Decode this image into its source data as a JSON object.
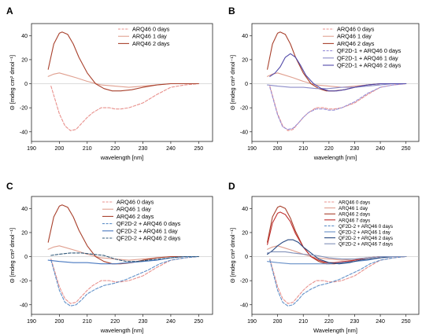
{
  "figure": {
    "panels": [
      "A",
      "B",
      "C",
      "D"
    ]
  },
  "chart_data": [
    {
      "panel": "A",
      "type": "line",
      "xlabel": "wavelength [nm]",
      "ylabel": "Θ [mdeg cm² dmol⁻¹]",
      "xlim": [
        190,
        255
      ],
      "ylim": [
        -48,
        50
      ],
      "xticks": [
        190,
        200,
        210,
        220,
        230,
        240,
        250
      ],
      "yticks": [
        -40,
        -20,
        0,
        20,
        40
      ],
      "legend_position": "top-right",
      "series": [
        {
          "name": "ARQ46 0 days",
          "color": "#e8908c",
          "dash": "dashed",
          "x": [
            197,
            200,
            202,
            204,
            206,
            208,
            210,
            212,
            215,
            218,
            220,
            222,
            225,
            230,
            235,
            240,
            245,
            250
          ],
          "y": [
            -2,
            -25,
            -35,
            -39,
            -38,
            -33,
            -28,
            -24,
            -20,
            -20,
            -21,
            -21,
            -20,
            -16,
            -9,
            -3,
            -1,
            0
          ]
        },
        {
          "name": "ARQ46 1 day",
          "color": "#e0a090",
          "dash": "solid",
          "x": [
            196,
            198,
            200,
            203,
            206,
            210,
            215,
            220,
            225,
            230,
            235,
            240,
            245,
            250
          ],
          "y": [
            6,
            8,
            9,
            7,
            5,
            2,
            -1,
            -2,
            -3,
            -2,
            -1,
            0,
            0,
            0
          ]
        },
        {
          "name": "ARQ46 2 days",
          "color": "#a8402c",
          "dash": "solid",
          "x": [
            196,
            198,
            200,
            201,
            203,
            205,
            207,
            210,
            213,
            216,
            219,
            222,
            226,
            230,
            235,
            240,
            245,
            250
          ],
          "y": [
            12,
            33,
            42,
            43,
            41,
            33,
            22,
            9,
            0,
            -4,
            -6,
            -6,
            -5,
            -3,
            -1,
            0,
            0,
            0
          ]
        }
      ]
    },
    {
      "panel": "B",
      "type": "line",
      "xlabel": "wavelength [nm]",
      "ylabel": "Θ [mdeg cm² dmol⁻¹]",
      "xlim": [
        190,
        255
      ],
      "ylim": [
        -48,
        50
      ],
      "xticks": [
        190,
        200,
        210,
        220,
        230,
        240,
        250
      ],
      "yticks": [
        -40,
        -20,
        0,
        20,
        40
      ],
      "legend_position": "top-right",
      "series": [
        {
          "name": "ARQ46 0 days",
          "color": "#e8908c",
          "dash": "dashed",
          "x": [
            197,
            200,
            202,
            204,
            206,
            208,
            210,
            212,
            215,
            218,
            220,
            222,
            225,
            230,
            235,
            240,
            245,
            250
          ],
          "y": [
            -2,
            -25,
            -35,
            -39,
            -38,
            -33,
            -28,
            -24,
            -20,
            -20,
            -21,
            -21,
            -20,
            -16,
            -9,
            -3,
            -1,
            0
          ]
        },
        {
          "name": "ARQ46 1 day",
          "color": "#e0a090",
          "dash": "solid",
          "x": [
            196,
            198,
            200,
            203,
            206,
            210,
            215,
            220,
            225,
            230,
            235,
            240,
            245,
            250
          ],
          "y": [
            6,
            8,
            9,
            7,
            5,
            2,
            -1,
            -2,
            -3,
            -2,
            -1,
            0,
            0,
            0
          ]
        },
        {
          "name": "ARQ46 2 days",
          "color": "#a8402c",
          "dash": "solid",
          "x": [
            196,
            198,
            200,
            201,
            203,
            205,
            207,
            210,
            213,
            216,
            219,
            222,
            226,
            230,
            235,
            240,
            245,
            250
          ],
          "y": [
            12,
            33,
            42,
            43,
            41,
            33,
            22,
            9,
            0,
            -4,
            -6,
            -6,
            -5,
            -3,
            -1,
            0,
            0,
            0
          ]
        },
        {
          "name": "QF2D-1 + ARQ46 0 days",
          "color": "#9890d8",
          "dash": "dashed",
          "x": [
            197,
            200,
            202,
            204,
            206,
            208,
            210,
            212,
            215,
            218,
            220,
            222,
            225,
            230,
            235,
            240,
            245,
            250
          ],
          "y": [
            -3,
            -26,
            -36,
            -38,
            -37,
            -33,
            -28,
            -24,
            -21,
            -21,
            -22,
            -22,
            -20,
            -15,
            -8,
            -3,
            -1,
            0
          ]
        },
        {
          "name": "QF2D-1 + ARQ46 1 day",
          "color": "#8c8cc8",
          "dash": "solid",
          "x": [
            196,
            200,
            205,
            210,
            215,
            220,
            225,
            230,
            235,
            240,
            245,
            250
          ],
          "y": [
            -1,
            -2,
            -3,
            -3,
            -4,
            -4,
            -3,
            -3,
            -2,
            -1,
            0,
            0
          ]
        },
        {
          "name": "QF2D-1 + ARQ46 2 days",
          "color": "#5048a8",
          "dash": "solid",
          "x": [
            197,
            199,
            201,
            203,
            205,
            207,
            209,
            211,
            214,
            217,
            220,
            223,
            226,
            230,
            235,
            240,
            245,
            250
          ],
          "y": [
            6,
            9,
            14,
            22,
            25,
            22,
            15,
            7,
            0,
            -4,
            -6,
            -6,
            -5,
            -3,
            -1,
            0,
            0,
            0
          ]
        }
      ]
    },
    {
      "panel": "C",
      "type": "line",
      "xlabel": "wavelength [nm]",
      "ylabel": "Θ [mdeg cm² dmol⁻¹]",
      "xlim": [
        190,
        255
      ],
      "ylim": [
        -48,
        50
      ],
      "xticks": [
        190,
        200,
        210,
        220,
        230,
        240,
        250
      ],
      "yticks": [
        -40,
        -20,
        0,
        20,
        40
      ],
      "legend_position": "top-right",
      "series": [
        {
          "name": "ARQ46 0 days",
          "color": "#e8908c",
          "dash": "dashed",
          "x": [
            197,
            200,
            202,
            204,
            206,
            208,
            210,
            212,
            215,
            218,
            220,
            222,
            225,
            230,
            235,
            240,
            245,
            250
          ],
          "y": [
            -2,
            -25,
            -35,
            -39,
            -38,
            -33,
            -28,
            -24,
            -20,
            -20,
            -21,
            -21,
            -20,
            -16,
            -9,
            -3,
            -1,
            0
          ]
        },
        {
          "name": "ARQ46 1 day",
          "color": "#e0a090",
          "dash": "solid",
          "x": [
            196,
            198,
            200,
            203,
            206,
            210,
            215,
            220,
            225,
            230,
            235,
            240,
            245,
            250
          ],
          "y": [
            6,
            8,
            9,
            7,
            5,
            2,
            -1,
            -2,
            -3,
            -2,
            -1,
            0,
            0,
            0
          ]
        },
        {
          "name": "ARQ46 2 days",
          "color": "#a8402c",
          "dash": "solid",
          "x": [
            196,
            198,
            200,
            201,
            203,
            205,
            207,
            210,
            213,
            216,
            219,
            222,
            226,
            230,
            235,
            240,
            245,
            250
          ],
          "y": [
            12,
            33,
            42,
            43,
            41,
            33,
            22,
            9,
            0,
            -4,
            -6,
            -6,
            -5,
            -3,
            -1,
            0,
            0,
            0
          ]
        },
        {
          "name": "QF2D-2 + ARQ46 0 days",
          "color": "#6090c8",
          "dash": "dashed",
          "x": [
            197,
            200,
            202,
            204,
            206,
            208,
            210,
            213,
            216,
            220,
            224,
            228,
            232,
            236,
            240,
            245,
            250
          ],
          "y": [
            -3,
            -28,
            -38,
            -41,
            -40,
            -36,
            -31,
            -27,
            -24,
            -22,
            -19,
            -15,
            -11,
            -6,
            -3,
            -1,
            0
          ]
        },
        {
          "name": "QF2D-2 + ARQ46 1 day",
          "color": "#4878c0",
          "dash": "solid",
          "x": [
            196,
            200,
            205,
            210,
            215,
            220,
            225,
            230,
            235,
            240,
            245,
            250
          ],
          "y": [
            -3,
            -4,
            -5,
            -5,
            -6,
            -6,
            -5,
            -4,
            -3,
            -1,
            0,
            0
          ]
        },
        {
          "name": "QF2D-2 + ARQ46 2 days",
          "color": "#305878",
          "dash": "dashed",
          "x": [
            197,
            200,
            204,
            208,
            212,
            216,
            220,
            224,
            228,
            232,
            236,
            240,
            245,
            250
          ],
          "y": [
            1,
            2,
            3,
            3,
            2,
            1,
            -2,
            -4,
            -4,
            -3,
            -2,
            -1,
            0,
            0
          ]
        }
      ]
    },
    {
      "panel": "D",
      "type": "line",
      "xlabel": "Wavelength [nm]",
      "ylabel": "Θ [mdeg cm² dmol⁻¹]",
      "xlim": [
        190,
        255
      ],
      "ylim": [
        -48,
        50
      ],
      "xticks": [
        190,
        200,
        210,
        220,
        230,
        240,
        250
      ],
      "yticks": [
        -40,
        -20,
        0,
        20,
        40
      ],
      "legend_position": "top-right",
      "series": [
        {
          "name": "ARQ46 0 days",
          "color": "#e8908c",
          "dash": "dashed",
          "x": [
            197,
            200,
            202,
            204,
            206,
            208,
            210,
            212,
            215,
            218,
            220,
            222,
            225,
            230,
            235,
            240,
            245,
            250
          ],
          "y": [
            -2,
            -25,
            -35,
            -39,
            -38,
            -33,
            -28,
            -24,
            -20,
            -20,
            -21,
            -21,
            -20,
            -16,
            -9,
            -3,
            -1,
            0
          ]
        },
        {
          "name": "ARQ46 1 day",
          "color": "#e0a090",
          "dash": "solid",
          "x": [
            196,
            198,
            200,
            203,
            206,
            210,
            215,
            220,
            225,
            230,
            235,
            240,
            245,
            250
          ],
          "y": [
            6,
            8,
            9,
            7,
            5,
            2,
            -1,
            -2,
            -3,
            -2,
            -1,
            0,
            0,
            0
          ]
        },
        {
          "name": "ARQ46 2 days",
          "color": "#a8402c",
          "dash": "solid",
          "x": [
            196,
            198,
            200,
            201,
            203,
            205,
            207,
            210,
            213,
            216,
            219,
            222,
            226,
            230,
            235,
            240,
            245,
            250
          ],
          "y": [
            12,
            33,
            41,
            42,
            40,
            32,
            21,
            8,
            0,
            -4,
            -6,
            -6,
            -5,
            -3,
            -1,
            0,
            0,
            0
          ]
        },
        {
          "name": "ARQ46 7 days",
          "color": "#c03030",
          "dash": "solid",
          "x": [
            196,
            198,
            200,
            201,
            203,
            205,
            207,
            210,
            213,
            216,
            219,
            222,
            226,
            230,
            235,
            240,
            245,
            250
          ],
          "y": [
            10,
            28,
            36,
            37,
            35,
            29,
            19,
            8,
            0,
            -3,
            -5,
            -5,
            -4,
            -3,
            -1,
            0,
            0,
            0
          ]
        },
        {
          "name": "QF2D-2 + ARQ46 0 days",
          "color": "#6090c8",
          "dash": "dashed",
          "x": [
            197,
            200,
            202,
            204,
            206,
            208,
            210,
            213,
            216,
            220,
            224,
            228,
            232,
            236,
            240,
            245,
            250
          ],
          "y": [
            -3,
            -28,
            -38,
            -41,
            -40,
            -36,
            -31,
            -27,
            -24,
            -22,
            -19,
            -15,
            -11,
            -6,
            -3,
            -1,
            0
          ]
        },
        {
          "name": "QF2D-2 + ARQ46 1 day",
          "color": "#6890c8",
          "dash": "solid",
          "x": [
            196,
            200,
            205,
            210,
            215,
            220,
            225,
            230,
            235,
            240,
            245,
            250
          ],
          "y": [
            -4,
            -5,
            -6,
            -6,
            -6,
            -6,
            -5,
            -4,
            -3,
            -1,
            0,
            0
          ]
        },
        {
          "name": "QF2D-2 + ARQ46 2 days",
          "color": "#284880",
          "dash": "solid",
          "x": [
            196,
            198,
            200,
            202,
            204,
            206,
            208,
            210,
            213,
            216,
            220,
            224,
            228,
            232,
            236,
            240,
            245,
            250
          ],
          "y": [
            2,
            5,
            9,
            12,
            14,
            14,
            12,
            8,
            3,
            -2,
            -5,
            -6,
            -5,
            -3,
            -2,
            -1,
            0,
            0
          ]
        },
        {
          "name": "QF2D-2 + ARQ46 7 days",
          "color": "#8090b8",
          "dash": "solid",
          "x": [
            196,
            198,
            200,
            203,
            206,
            210,
            215,
            220,
            225,
            230,
            235,
            240,
            245,
            250
          ],
          "y": [
            3,
            4,
            4,
            4,
            3,
            2,
            1,
            -1,
            -2,
            -2,
            -1,
            0,
            0,
            0
          ]
        }
      ]
    }
  ]
}
